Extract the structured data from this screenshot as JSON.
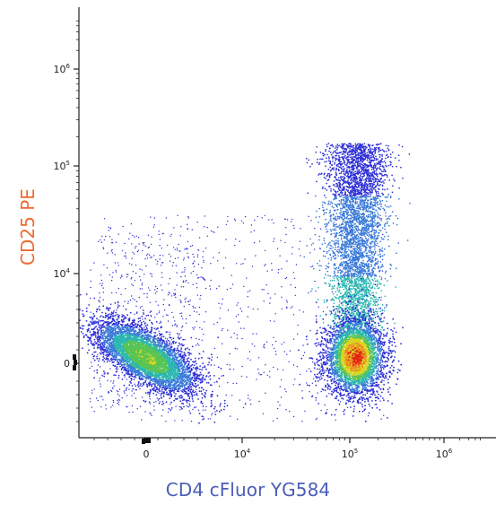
{
  "chart_data": {
    "type": "scatter",
    "plot_style": "flow-cytometry-density-dot-plot",
    "x_scale": "biexponential",
    "y_scale": "biexponential",
    "x_axis": {
      "label": "CD4 cFluor YG584",
      "label_color": "#4a5db8",
      "ticks": [
        {
          "value": 0,
          "base": "0",
          "exp": ""
        },
        {
          "value": 10000,
          "base": "10",
          "exp": "4"
        },
        {
          "value": 100000,
          "base": "10",
          "exp": "5"
        },
        {
          "value": 1000000,
          "base": "10",
          "exp": "6"
        }
      ]
    },
    "y_axis": {
      "label": "CD25 PE",
      "label_color": "#ee6a33",
      "ticks": [
        {
          "value": 0,
          "base": "0",
          "exp": ""
        },
        {
          "value": 10000,
          "base": "10",
          "exp": "4"
        },
        {
          "value": 100000,
          "base": "10",
          "exp": "5"
        },
        {
          "value": 1000000,
          "base": "10",
          "exp": "6"
        }
      ]
    },
    "populations": [
      {
        "description_key": "CD4-negative CD25-negative",
        "center": {
          "x": 0,
          "y": 0
        },
        "relative_density": "high"
      },
      {
        "description_key": "CD4-positive CD25-negative",
        "center": {
          "x": 120000,
          "y": 0
        },
        "relative_density": "highest"
      },
      {
        "description_key": "CD4-positive CD25-positive",
        "center": {
          "x": 110000,
          "y": 30000
        },
        "relative_density": "medium"
      }
    ],
    "density_colormap": [
      "#2d2fd6",
      "#3a7ad8",
      "#2bb7b0",
      "#58c455",
      "#d8d61f",
      "#ef8a1f",
      "#e42314"
    ],
    "grid": false,
    "legend": "none"
  }
}
